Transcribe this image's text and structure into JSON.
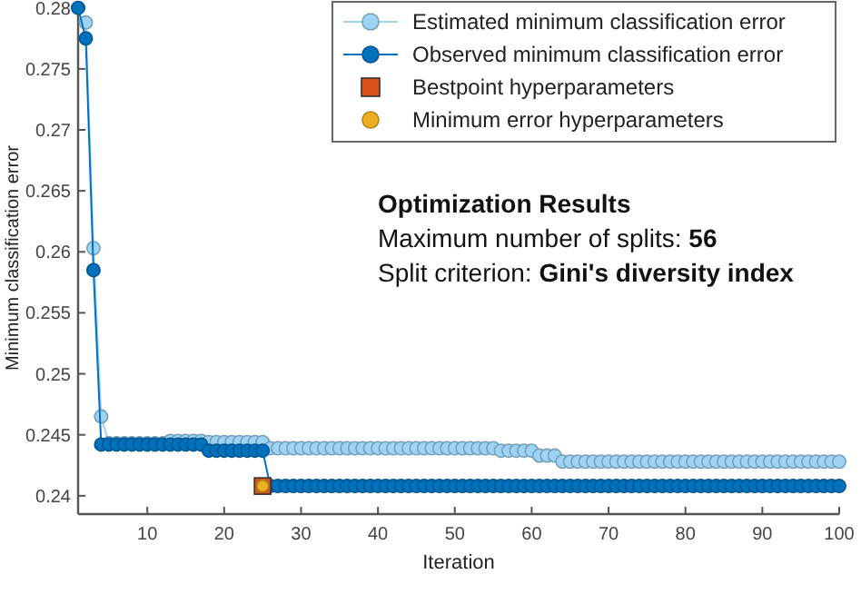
{
  "chart_data": {
    "type": "line",
    "xlabel": "Iteration",
    "ylabel": "Minimum classification error",
    "xlim": [
      1,
      100
    ],
    "ylim": [
      0.2385,
      0.2805
    ],
    "xticks": [
      10,
      20,
      30,
      40,
      50,
      60,
      70,
      80,
      90,
      100
    ],
    "yticks": [
      0.24,
      0.245,
      0.25,
      0.255,
      0.26,
      0.265,
      0.27,
      0.275,
      0.28
    ],
    "legend": "top right",
    "grid": false,
    "x": [
      1,
      2,
      3,
      4,
      5,
      6,
      7,
      8,
      9,
      10,
      11,
      12,
      13,
      14,
      15,
      16,
      17,
      18,
      19,
      20,
      21,
      22,
      23,
      24,
      25,
      26,
      27,
      28,
      29,
      30,
      31,
      32,
      33,
      34,
      35,
      36,
      37,
      38,
      39,
      40,
      41,
      42,
      43,
      44,
      45,
      46,
      47,
      48,
      49,
      50,
      51,
      52,
      53,
      54,
      55,
      56,
      57,
      58,
      59,
      60,
      61,
      62,
      63,
      64,
      65,
      66,
      67,
      68,
      69,
      70,
      71,
      72,
      73,
      74,
      75,
      76,
      77,
      78,
      79,
      80,
      81,
      82,
      83,
      84,
      85,
      86,
      87,
      88,
      89,
      90,
      91,
      92,
      93,
      94,
      95,
      96,
      97,
      98,
      99,
      100
    ],
    "series": [
      {
        "name": "Estimated minimum classification error",
        "marker": "circle",
        "color": "#9dd3f5",
        "values": [
          null,
          0.2788,
          0.2603,
          0.2465,
          0.2443,
          0.2443,
          0.2443,
          0.2443,
          0.2443,
          0.2443,
          0.2443,
          0.2443,
          0.2445,
          0.2445,
          0.2445,
          0.2445,
          0.2445,
          0.2444,
          0.2444,
          0.2444,
          0.2444,
          0.2444,
          0.2444,
          0.2444,
          0.2444,
          0.2439,
          0.2439,
          0.2439,
          0.2439,
          0.2439,
          0.2439,
          0.2439,
          0.2439,
          0.2439,
          0.2439,
          0.2439,
          0.2439,
          0.2439,
          0.2439,
          0.2439,
          0.2439,
          0.2439,
          0.2439,
          0.2439,
          0.2439,
          0.2439,
          0.2439,
          0.2439,
          0.2439,
          0.2439,
          0.2439,
          0.2439,
          0.2439,
          0.2439,
          0.2439,
          0.2437,
          0.2437,
          0.2437,
          0.2437,
          0.2437,
          0.2433,
          0.2433,
          0.2433,
          0.2428,
          0.2428,
          0.2428,
          0.2428,
          0.2428,
          0.2428,
          0.2428,
          0.2428,
          0.2428,
          0.2428,
          0.2428,
          0.2428,
          0.2428,
          0.2428,
          0.2428,
          0.2428,
          0.2428,
          0.2428,
          0.2428,
          0.2428,
          0.2428,
          0.2428,
          0.2428,
          0.2428,
          0.2428,
          0.2428,
          0.2428,
          0.2428,
          0.2428,
          0.2428,
          0.2428,
          0.2428,
          0.2428,
          0.2428,
          0.2428,
          0.2428,
          0.2428
        ]
      },
      {
        "name": "Observed minimum classification error",
        "marker": "circle",
        "color": "#0072bd",
        "values": [
          0.28,
          0.2775,
          0.2585,
          0.2442,
          0.2442,
          0.2442,
          0.2442,
          0.2442,
          0.2442,
          0.2442,
          0.2442,
          0.2442,
          0.2442,
          0.2442,
          0.2442,
          0.2442,
          0.2442,
          0.2437,
          0.2437,
          0.2437,
          0.2437,
          0.2437,
          0.2437,
          0.2437,
          0.2437,
          0.2408,
          0.2408,
          0.2408,
          0.2408,
          0.2408,
          0.2408,
          0.2408,
          0.2408,
          0.2408,
          0.2408,
          0.2408,
          0.2408,
          0.2408,
          0.2408,
          0.2408,
          0.2408,
          0.2408,
          0.2408,
          0.2408,
          0.2408,
          0.2408,
          0.2408,
          0.2408,
          0.2408,
          0.2408,
          0.2408,
          0.2408,
          0.2408,
          0.2408,
          0.2408,
          0.2408,
          0.2408,
          0.2408,
          0.2408,
          0.2408,
          0.2408,
          0.2408,
          0.2408,
          0.2408,
          0.2408,
          0.2408,
          0.2408,
          0.2408,
          0.2408,
          0.2408,
          0.2408,
          0.2408,
          0.2408,
          0.2408,
          0.2408,
          0.2408,
          0.2408,
          0.2408,
          0.2408,
          0.2408,
          0.2408,
          0.2408,
          0.2408,
          0.2408,
          0.2408,
          0.2408,
          0.2408,
          0.2408,
          0.2408,
          0.2408,
          0.2408,
          0.2408,
          0.2408,
          0.2408,
          0.2408,
          0.2408,
          0.2408,
          0.2408,
          0.2408,
          0.2408
        ]
      },
      {
        "name": "Bestpoint hyperparameters",
        "type": "scatter",
        "marker": "square",
        "color": "#d95319",
        "x": [
          25
        ],
        "values": [
          0.2408
        ]
      },
      {
        "name": "Minimum error hyperparameters",
        "type": "scatter",
        "marker": "circle",
        "color": "#edb120",
        "x": [
          25
        ],
        "values": [
          0.2408
        ]
      }
    ],
    "annotations": [
      "Optimization Results",
      "Maximum number of splits: 56",
      "Split criterion: Gini's diversity index"
    ]
  }
}
